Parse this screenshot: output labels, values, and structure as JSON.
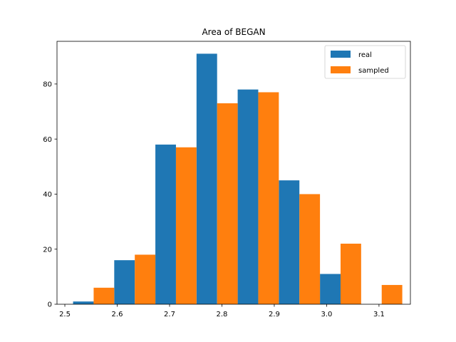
{
  "chart_data": {
    "type": "bar",
    "title": "Area of BEGAN",
    "xlabel": "",
    "ylabel": "",
    "xlim": [
      2.485,
      3.16
    ],
    "ylim": [
      0,
      95.5
    ],
    "bin_width": 0.0786,
    "bin_starts": [
      2.5157,
      2.5943,
      2.6729,
      2.7515,
      2.8301,
      2.9087,
      2.9873,
      3.0659
    ],
    "x_ticks": [
      {
        "value": 2.5,
        "label": "2.5"
      },
      {
        "value": 2.6,
        "label": "2.6"
      },
      {
        "value": 2.7,
        "label": "2.7"
      },
      {
        "value": 2.8,
        "label": "2.8"
      },
      {
        "value": 2.9,
        "label": "2.9"
      },
      {
        "value": 3.0,
        "label": "3.0"
      },
      {
        "value": 3.1,
        "label": "3.1"
      }
    ],
    "y_ticks": [
      {
        "value": 0,
        "label": "0"
      },
      {
        "value": 20,
        "label": "20"
      },
      {
        "value": 40,
        "label": "40"
      },
      {
        "value": 60,
        "label": "60"
      },
      {
        "value": 80,
        "label": "80"
      }
    ],
    "series": [
      {
        "name": "real",
        "color": "#1f77b4",
        "values": [
          1,
          16,
          58,
          91,
          78,
          45,
          11,
          0
        ]
      },
      {
        "name": "sampled",
        "color": "#ff7f0e",
        "values": [
          6,
          18,
          57,
          73,
          77,
          40,
          22,
          7
        ]
      }
    ],
    "legend_position": "top-right",
    "grid": false
  }
}
